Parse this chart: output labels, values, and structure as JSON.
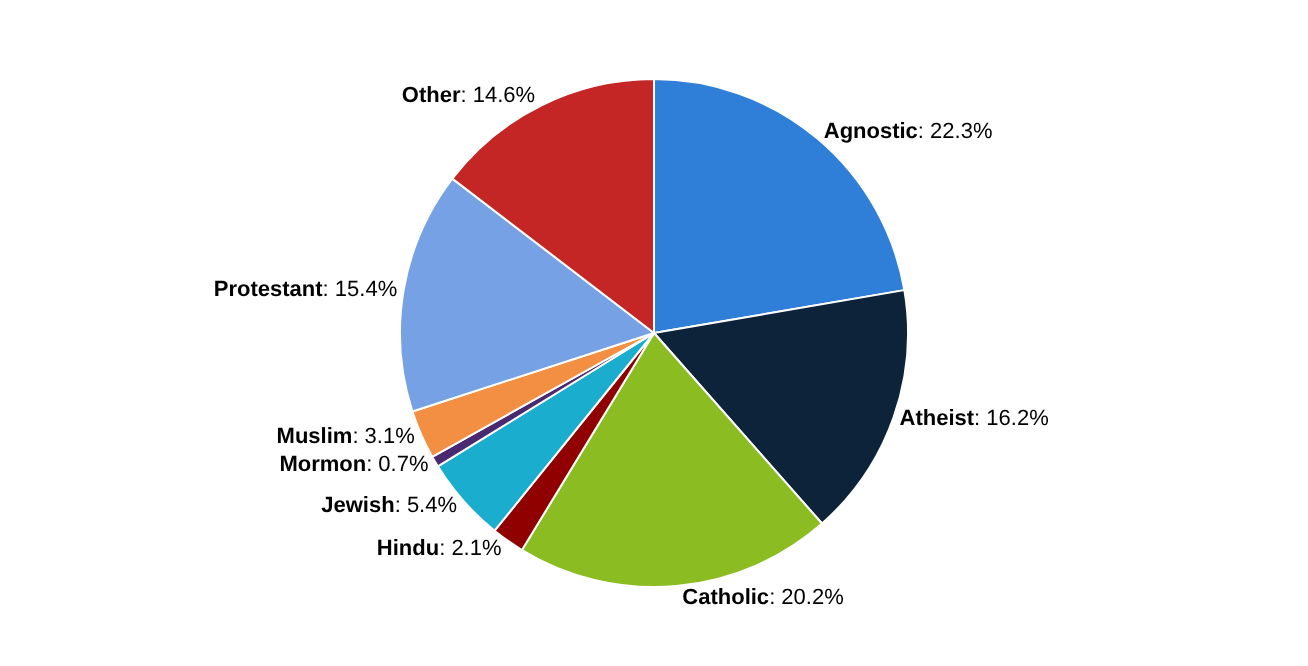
{
  "chart_data": {
    "type": "pie",
    "categories": [
      "Agnostic",
      "Atheist",
      "Catholic",
      "Hindu",
      "Jewish",
      "Mormon",
      "Muslim",
      "Protestant",
      "Other"
    ],
    "values": [
      22.3,
      16.2,
      20.2,
      2.1,
      5.4,
      0.7,
      3.1,
      15.4,
      14.6
    ],
    "value_labels": [
      ": 22.3%",
      ": 16.2%",
      ": 20.2%",
      ": 2.1%",
      ": 5.4%",
      ": 0.7%",
      ": 3.1%",
      ": 15.4%",
      ": 14.6%"
    ],
    "colors": [
      "#2f7ed8",
      "#0d233a",
      "#8bbc21",
      "#910000",
      "#1aadce",
      "#492970",
      "#f28f43",
      "#77a1e5",
      "#c42525"
    ],
    "legend": false
  }
}
